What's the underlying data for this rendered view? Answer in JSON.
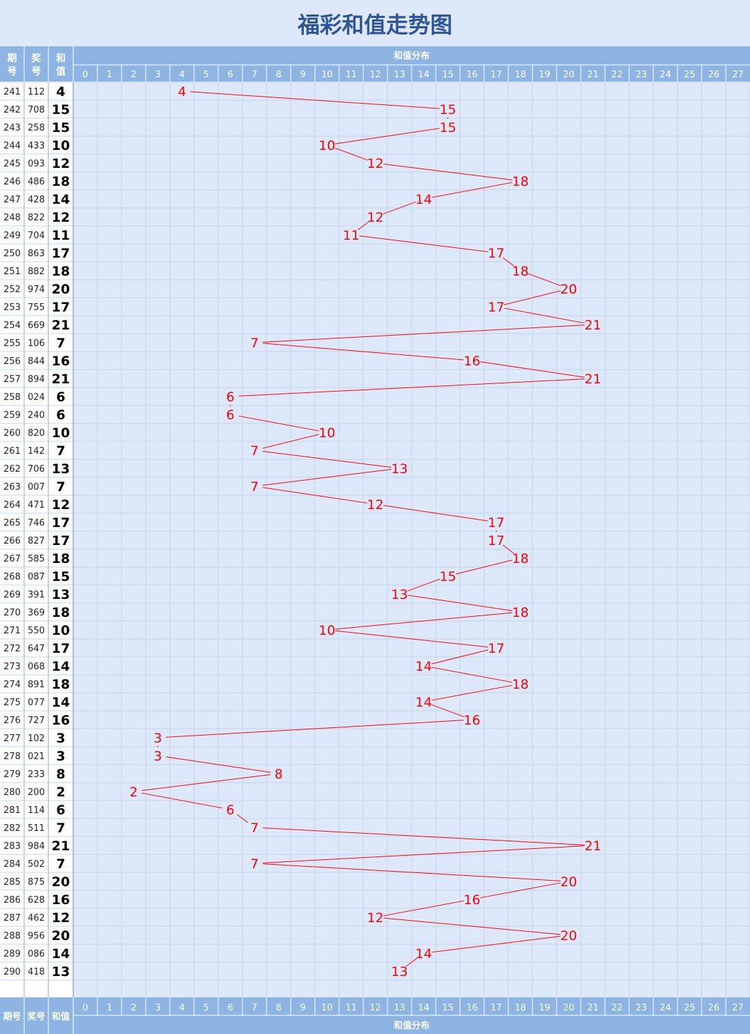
{
  "title": "福彩和值走势图",
  "header": {
    "col_issue_top": "期",
    "col_issue_bottom": "号",
    "col_prize_top": "奖",
    "col_prize_bottom": "号",
    "col_sum_top": "和",
    "col_sum_bottom": "值",
    "distribution_label": "和值分布"
  },
  "footer": {
    "col_issue": "期号",
    "col_prize": "奖号",
    "col_sum": "和值",
    "distribution_label": "和值分布"
  },
  "colors": {
    "title_bg": "#dde9fb",
    "title_text": "#2f5597",
    "header_bg": "#8eb4e3",
    "grid_bg": "#dde9fb",
    "line": "#ff0000",
    "marker_text": "#ff0000"
  },
  "chart_data": {
    "type": "line",
    "x_categories": [
      0,
      1,
      2,
      3,
      4,
      5,
      6,
      7,
      8,
      9,
      10,
      11,
      12,
      13,
      14,
      15,
      16,
      17,
      18,
      19,
      20,
      21,
      22,
      23,
      24,
      25,
      26,
      27
    ],
    "xlim": [
      0,
      27
    ],
    "grid": true,
    "rows": [
      {
        "issue": "241",
        "number": "112",
        "sum": 4
      },
      {
        "issue": "242",
        "number": "708",
        "sum": 15
      },
      {
        "issue": "243",
        "number": "258",
        "sum": 15
      },
      {
        "issue": "244",
        "number": "433",
        "sum": 10
      },
      {
        "issue": "245",
        "number": "093",
        "sum": 12
      },
      {
        "issue": "246",
        "number": "486",
        "sum": 18
      },
      {
        "issue": "247",
        "number": "428",
        "sum": 14
      },
      {
        "issue": "248",
        "number": "822",
        "sum": 12
      },
      {
        "issue": "249",
        "number": "704",
        "sum": 11
      },
      {
        "issue": "250",
        "number": "863",
        "sum": 17
      },
      {
        "issue": "251",
        "number": "882",
        "sum": 18
      },
      {
        "issue": "252",
        "number": "974",
        "sum": 20
      },
      {
        "issue": "253",
        "number": "755",
        "sum": 17
      },
      {
        "issue": "254",
        "number": "669",
        "sum": 21
      },
      {
        "issue": "255",
        "number": "106",
        "sum": 7
      },
      {
        "issue": "256",
        "number": "844",
        "sum": 16
      },
      {
        "issue": "257",
        "number": "894",
        "sum": 21
      },
      {
        "issue": "258",
        "number": "024",
        "sum": 6
      },
      {
        "issue": "259",
        "number": "240",
        "sum": 6
      },
      {
        "issue": "260",
        "number": "820",
        "sum": 10
      },
      {
        "issue": "261",
        "number": "142",
        "sum": 7
      },
      {
        "issue": "262",
        "number": "706",
        "sum": 13
      },
      {
        "issue": "263",
        "number": "007",
        "sum": 7
      },
      {
        "issue": "264",
        "number": "471",
        "sum": 12
      },
      {
        "issue": "265",
        "number": "746",
        "sum": 17
      },
      {
        "issue": "266",
        "number": "827",
        "sum": 17
      },
      {
        "issue": "267",
        "number": "585",
        "sum": 18
      },
      {
        "issue": "268",
        "number": "087",
        "sum": 15
      },
      {
        "issue": "269",
        "number": "391",
        "sum": 13
      },
      {
        "issue": "270",
        "number": "369",
        "sum": 18
      },
      {
        "issue": "271",
        "number": "550",
        "sum": 10
      },
      {
        "issue": "272",
        "number": "647",
        "sum": 17
      },
      {
        "issue": "273",
        "number": "068",
        "sum": 14
      },
      {
        "issue": "274",
        "number": "891",
        "sum": 18
      },
      {
        "issue": "275",
        "number": "077",
        "sum": 14
      },
      {
        "issue": "276",
        "number": "727",
        "sum": 16
      },
      {
        "issue": "277",
        "number": "102",
        "sum": 3
      },
      {
        "issue": "278",
        "number": "021",
        "sum": 3
      },
      {
        "issue": "279",
        "number": "233",
        "sum": 8
      },
      {
        "issue": "280",
        "number": "200",
        "sum": 2
      },
      {
        "issue": "281",
        "number": "114",
        "sum": 6
      },
      {
        "issue": "282",
        "number": "511",
        "sum": 7
      },
      {
        "issue": "283",
        "number": "984",
        "sum": 21
      },
      {
        "issue": "284",
        "number": "502",
        "sum": 7
      },
      {
        "issue": "285",
        "number": "875",
        "sum": 20
      },
      {
        "issue": "286",
        "number": "628",
        "sum": 16
      },
      {
        "issue": "287",
        "number": "462",
        "sum": 12
      },
      {
        "issue": "288",
        "number": "956",
        "sum": 20
      },
      {
        "issue": "289",
        "number": "086",
        "sum": 14
      },
      {
        "issue": "290",
        "number": "418",
        "sum": 13
      }
    ]
  }
}
